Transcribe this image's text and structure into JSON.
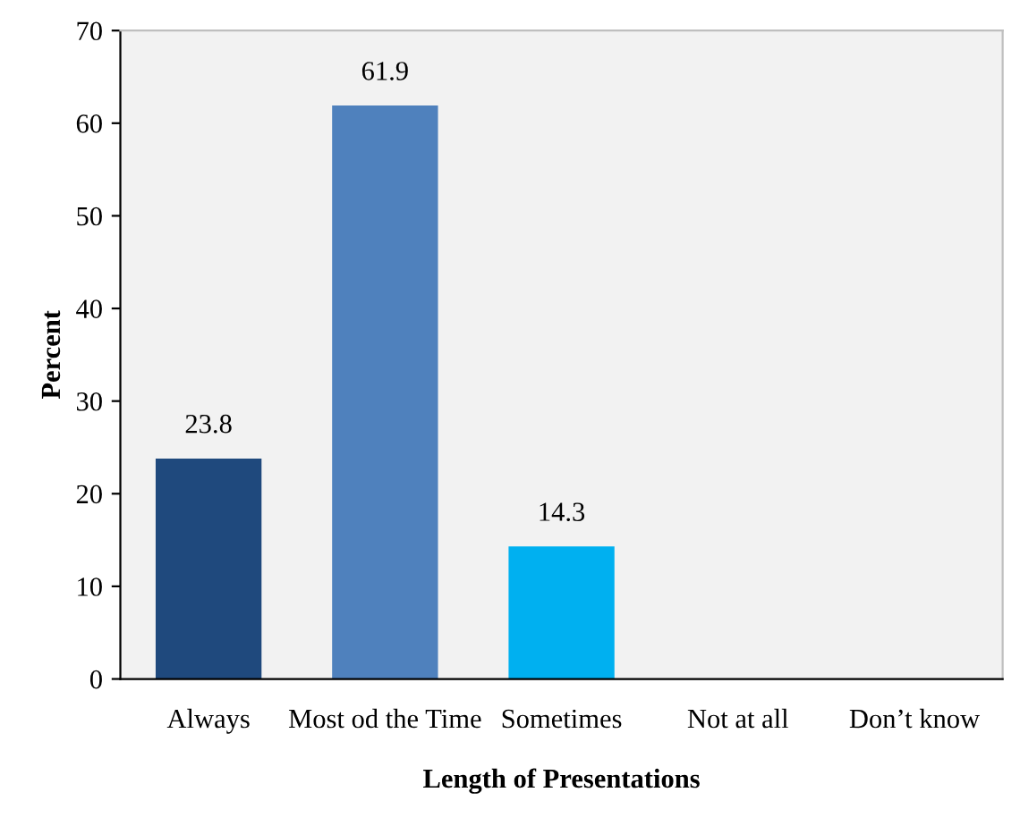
{
  "chart_data": {
    "type": "bar",
    "xlabel": "Length of Presentations",
    "ylabel": "Percent",
    "categories": [
      "Always",
      "Most od the Time",
      "Sometimes",
      "Not at all",
      "Don’t know"
    ],
    "values": [
      23.8,
      61.9,
      14.3,
      0,
      0
    ],
    "colors": [
      "#1f497d",
      "#4f81bd",
      "#00b0f0",
      "#4f81bd",
      "#4f81bd"
    ],
    "value_labels": [
      "23.8",
      "61.9",
      "14.3",
      null,
      null
    ],
    "ylim": [
      0,
      70
    ],
    "yticks": [
      0,
      10,
      20,
      30,
      40,
      50,
      60,
      70
    ],
    "grid": false
  }
}
